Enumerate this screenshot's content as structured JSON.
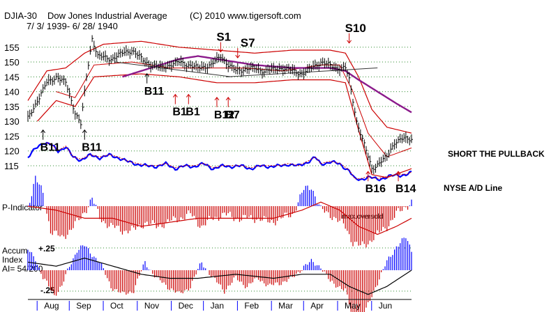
{
  "header": {
    "symbol": "DJIA-30",
    "name": "Dow Jones Industrial Average",
    "copyright": "(C) 2010 www.tigersoft.com",
    "date_range": "7/ 3/ 1939- 6/ 28/ 1940"
  },
  "chart_data": {
    "type": "line",
    "title": "DJIA-30  Dow Jones Industrial Average",
    "subtitle": "7/ 3/ 1939- 6/ 28/ 1940",
    "price_axis": {
      "ticks": [
        155,
        150,
        145,
        140,
        135,
        130,
        125,
        120,
        115
      ],
      "ylim": [
        111,
        158
      ]
    },
    "month_labels": [
      "Aug",
      "Sep",
      "Oct",
      "Nov",
      "Dec",
      "Jan",
      "Feb",
      "Mar",
      "Apr",
      "May",
      "Jun"
    ],
    "month_index": [
      13,
      30,
      48,
      66,
      84,
      101,
      119,
      137,
      154,
      172,
      190
    ],
    "days": 204,
    "price_series": {
      "name": "DJIA close",
      "knots": [
        [
          0,
          131
        ],
        [
          5,
          137
        ],
        [
          10,
          143
        ],
        [
          15,
          145
        ],
        [
          20,
          143
        ],
        [
          25,
          133
        ],
        [
          28,
          129
        ],
        [
          31,
          145
        ],
        [
          34,
          158
        ],
        [
          37,
          152
        ],
        [
          44,
          151
        ],
        [
          50,
          153
        ],
        [
          55,
          154
        ],
        [
          62,
          150
        ],
        [
          70,
          148
        ],
        [
          80,
          150
        ],
        [
          90,
          148
        ],
        [
          97,
          149
        ],
        [
          102,
          152
        ],
        [
          106,
          149
        ],
        [
          110,
          147
        ],
        [
          118,
          148
        ],
        [
          125,
          147
        ],
        [
          135,
          148
        ],
        [
          145,
          146
        ],
        [
          155,
          150
        ],
        [
          163,
          148
        ],
        [
          168,
          148
        ],
        [
          170,
          144
        ],
        [
          174,
          130
        ],
        [
          178,
          122
        ],
        [
          182,
          114
        ],
        [
          186,
          116
        ],
        [
          190,
          118
        ],
        [
          194,
          123
        ],
        [
          198,
          124
        ],
        [
          203,
          124
        ]
      ]
    },
    "band_upper": {
      "name": "upper band",
      "knots": [
        [
          0,
          137
        ],
        [
          10,
          147
        ],
        [
          20,
          148
        ],
        [
          30,
          153
        ],
        [
          40,
          156
        ],
        [
          60,
          157
        ],
        [
          80,
          155
        ],
        [
          100,
          154
        ],
        [
          120,
          153
        ],
        [
          140,
          154
        ],
        [
          160,
          154
        ],
        [
          168,
          153
        ],
        [
          175,
          145
        ],
        [
          182,
          134
        ],
        [
          190,
          128
        ],
        [
          203,
          126
        ]
      ]
    },
    "band_lower": {
      "name": "lower band",
      "knots": [
        [
          5,
          130
        ],
        [
          15,
          137
        ],
        [
          25,
          135
        ],
        [
          35,
          145
        ],
        [
          60,
          146
        ],
        [
          80,
          145
        ],
        [
          100,
          143
        ],
        [
          120,
          143
        ],
        [
          140,
          144
        ],
        [
          160,
          144
        ],
        [
          168,
          143
        ],
        [
          175,
          127
        ],
        [
          182,
          112
        ],
        [
          190,
          111
        ],
        [
          203,
          114
        ]
      ]
    },
    "ma_short": {
      "name": "short moving average",
      "knots": [
        [
          15,
          140
        ],
        [
          25,
          138
        ],
        [
          35,
          149
        ],
        [
          55,
          150
        ],
        [
          75,
          148
        ],
        [
          95,
          148
        ],
        [
          115,
          148
        ],
        [
          135,
          147
        ],
        [
          155,
          149
        ],
        [
          165,
          149
        ],
        [
          172,
          140
        ],
        [
          180,
          126
        ],
        [
          190,
          118
        ],
        [
          203,
          121
        ]
      ]
    },
    "ma_purple": {
      "name": "moving average",
      "knots": [
        [
          50,
          145
        ],
        [
          60,
          147
        ],
        [
          70,
          149
        ],
        [
          80,
          151
        ],
        [
          90,
          152
        ],
        [
          100,
          151
        ],
        [
          120,
          149
        ],
        [
          140,
          148
        ],
        [
          160,
          148
        ],
        [
          168,
          147
        ],
        [
          175,
          144
        ],
        [
          185,
          140
        ],
        [
          195,
          136
        ],
        [
          203,
          133
        ]
      ]
    },
    "trendlines": [
      {
        "name": "trendline 1",
        "points": [
          [
            46,
            150
          ],
          [
            108,
            145
          ]
        ]
      },
      {
        "name": "trendline 2",
        "points": [
          [
            105,
            145
          ],
          [
            185,
            148
          ]
        ]
      }
    ],
    "ad_line": {
      "name": "NYSE A/D Line",
      "ylim": [
        106,
        130
      ],
      "knots": [
        [
          0,
          120
        ],
        [
          4,
          124
        ],
        [
          8,
          127
        ],
        [
          12,
          126
        ],
        [
          16,
          123
        ],
        [
          20,
          125
        ],
        [
          24,
          120
        ],
        [
          28,
          119
        ],
        [
          33,
          121
        ],
        [
          38,
          120
        ],
        [
          43,
          121
        ],
        [
          48,
          120
        ],
        [
          53,
          118
        ],
        [
          58,
          117
        ],
        [
          63,
          116
        ],
        [
          68,
          116
        ],
        [
          73,
          117
        ],
        [
          78,
          115
        ],
        [
          83,
          116
        ],
        [
          88,
          116
        ],
        [
          93,
          117
        ],
        [
          98,
          115
        ],
        [
          103,
          116
        ],
        [
          108,
          116
        ],
        [
          113,
          116
        ],
        [
          118,
          115
        ],
        [
          123,
          116
        ],
        [
          128,
          116
        ],
        [
          133,
          116
        ],
        [
          138,
          117
        ],
        [
          143,
          116
        ],
        [
          148,
          118
        ],
        [
          152,
          120
        ],
        [
          155,
          117
        ],
        [
          160,
          118
        ],
        [
          165,
          117
        ],
        [
          170,
          114
        ],
        [
          173,
          110
        ],
        [
          176,
          110
        ],
        [
          180,
          111
        ],
        [
          185,
          110
        ],
        [
          190,
          111
        ],
        [
          195,
          112
        ],
        [
          200,
          112
        ],
        [
          203,
          113
        ]
      ]
    },
    "p_indicator": {
      "label": "P-Indicator",
      "annotation": "max.oversold",
      "knots": [
        [
          0,
          0
        ],
        [
          4,
          0.7
        ],
        [
          8,
          0.3
        ],
        [
          12,
          -0.6
        ],
        [
          18,
          -0.8
        ],
        [
          24,
          -0.5
        ],
        [
          28,
          -0.3
        ],
        [
          34,
          0.2
        ],
        [
          38,
          -0.3
        ],
        [
          44,
          -0.5
        ],
        [
          50,
          -0.6
        ],
        [
          56,
          -0.6
        ],
        [
          62,
          -0.4
        ],
        [
          68,
          -0.5
        ],
        [
          74,
          -0.4
        ],
        [
          80,
          -0.3
        ],
        [
          86,
          -0.2
        ],
        [
          92,
          -0.5
        ],
        [
          98,
          -0.3
        ],
        [
          104,
          -0.2
        ],
        [
          110,
          -0.3
        ],
        [
          116,
          -0.3
        ],
        [
          122,
          -0.3
        ],
        [
          128,
          -0.4
        ],
        [
          134,
          -0.3
        ],
        [
          140,
          -0.2
        ],
        [
          146,
          0.4
        ],
        [
          150,
          0.5
        ],
        [
          155,
          -0.1
        ],
        [
          160,
          -0.2
        ],
        [
          165,
          -0.4
        ],
        [
          168,
          -0.5
        ],
        [
          172,
          -0.9
        ],
        [
          176,
          -1
        ],
        [
          180,
          -0.9
        ],
        [
          185,
          -0.7
        ],
        [
          190,
          -0.5
        ],
        [
          195,
          -0.2
        ],
        [
          200,
          0
        ],
        [
          203,
          0.1
        ]
      ],
      "ma_knots": [
        [
          0,
          0
        ],
        [
          15,
          -0.1
        ],
        [
          30,
          -0.3
        ],
        [
          45,
          -0.3
        ],
        [
          60,
          -0.5
        ],
        [
          75,
          -0.4
        ],
        [
          90,
          -0.3
        ],
        [
          110,
          -0.3
        ],
        [
          130,
          -0.3
        ],
        [
          145,
          -0.1
        ],
        [
          155,
          0.1
        ],
        [
          165,
          -0.1
        ],
        [
          175,
          -0.5
        ],
        [
          185,
          -0.7
        ],
        [
          195,
          -0.5
        ],
        [
          203,
          -0.3
        ]
      ]
    },
    "accum_index": {
      "label_lines": [
        "Accum",
        "Index",
        "AI= 54/200"
      ],
      "ticks": [
        "+.25",
        "-.25"
      ],
      "knots": [
        [
          0,
          0.25
        ],
        [
          4,
          0.15
        ],
        [
          8,
          -0.1
        ],
        [
          14,
          -0.3
        ],
        [
          18,
          -0.2
        ],
        [
          22,
          0.05
        ],
        [
          26,
          0.25
        ],
        [
          30,
          0.3
        ],
        [
          34,
          0.2
        ],
        [
          38,
          0.1
        ],
        [
          44,
          -0.2
        ],
        [
          50,
          -0.3
        ],
        [
          56,
          -0.25
        ],
        [
          62,
          0.1
        ],
        [
          68,
          -0.1
        ],
        [
          74,
          -0.2
        ],
        [
          80,
          -0.3
        ],
        [
          86,
          -0.2
        ],
        [
          92,
          0.1
        ],
        [
          98,
          -0.1
        ],
        [
          104,
          -0.25
        ],
        [
          110,
          -0.1
        ],
        [
          116,
          -0.2
        ],
        [
          122,
          -0.1
        ],
        [
          128,
          -0.2
        ],
        [
          134,
          -0.15
        ],
        [
          140,
          -0.1
        ],
        [
          146,
          0.05
        ],
        [
          150,
          0.1
        ],
        [
          155,
          0.05
        ],
        [
          160,
          -0.15
        ],
        [
          165,
          -0.2
        ],
        [
          168,
          -0.25
        ],
        [
          172,
          -0.6
        ],
        [
          178,
          -0.55
        ],
        [
          184,
          -0.2
        ],
        [
          190,
          0.1
        ],
        [
          195,
          0.3
        ],
        [
          200,
          0.4
        ],
        [
          203,
          0.25
        ]
      ],
      "ma_knots": [
        [
          0,
          0.1
        ],
        [
          15,
          0.05
        ],
        [
          30,
          0.15
        ],
        [
          45,
          0.05
        ],
        [
          60,
          -0.05
        ],
        [
          75,
          -0.1
        ],
        [
          90,
          -0.1
        ],
        [
          110,
          -0.05
        ],
        [
          130,
          -0.1
        ],
        [
          145,
          -0.05
        ],
        [
          160,
          -0.05
        ],
        [
          170,
          -0.2
        ],
        [
          180,
          -0.3
        ],
        [
          190,
          -0.2
        ],
        [
          203,
          0
        ]
      ]
    },
    "signals": [
      {
        "label": "S1",
        "day": 102,
        "price": 152,
        "type": "sell"
      },
      {
        "label": "S7",
        "day": 111,
        "price": 150,
        "type": "sell"
      },
      {
        "label": "S10",
        "day": 170,
        "price": 155,
        "type": "sell"
      },
      {
        "label": "B11",
        "day": 8,
        "price": 128,
        "type": "buy"
      },
      {
        "label": "B11",
        "day": 30,
        "price": 128,
        "type": "buy"
      },
      {
        "label": "B11",
        "day": 63,
        "price": 147,
        "type": "buy"
      },
      {
        "label": "B1",
        "day": 78,
        "price": 140,
        "type": "buy"
      },
      {
        "label": "B1",
        "day": 85,
        "price": 140,
        "type": "buy"
      },
      {
        "label": "B12",
        "day": 100,
        "price": 139,
        "type": "buy"
      },
      {
        "label": "B7",
        "day": 106,
        "price": 139,
        "type": "buy"
      },
      {
        "label": "B16",
        "day": 180,
        "price": 114,
        "type": "buy"
      },
      {
        "label": "B14",
        "day": 196,
        "price": 114,
        "type": "buy"
      }
    ],
    "side_notes": [
      "SHORT THE PULLBACK",
      "NYSE A/D Line"
    ]
  }
}
